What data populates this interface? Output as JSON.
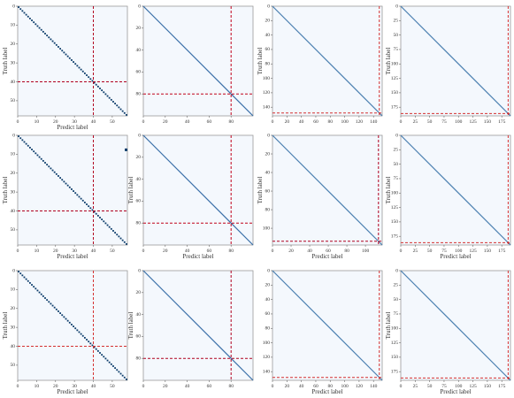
{
  "chart_data": [
    {
      "type": "heatmap",
      "xlabel": "Predict label",
      "ylabel": "Truth label",
      "n": 58,
      "xticks": [
        0,
        10,
        20,
        30,
        40,
        50
      ],
      "yticks": [
        0,
        10,
        20,
        30,
        40,
        50
      ],
      "yticklabels": [
        "0",
        "10",
        "20",
        "30",
        "40",
        "50"
      ],
      "diag_color": "#0d3d6b",
      "line_color": "#b0001e",
      "marker": 40,
      "dot_diag": true,
      "side_mark": false
    },
    {
      "type": "heatmap",
      "xlabel": "",
      "ylabel": "",
      "n": 100,
      "xticks": [
        0,
        20,
        40,
        60,
        80
      ],
      "yticks": [
        0,
        20,
        40,
        60,
        80
      ],
      "yticklabels": [
        "0",
        "20",
        "40",
        "60",
        "80"
      ],
      "diag_color": "#3a6fa8",
      "line_color": "#c0001a",
      "marker": 80,
      "dot_diag": false,
      "side_mark": false
    },
    {
      "type": "heatmap",
      "xlabel": "",
      "ylabel": "Truth label",
      "n": 152,
      "xticks": [
        0,
        20,
        40,
        60,
        80,
        100,
        120,
        140
      ],
      "yticks": [
        0,
        20,
        40,
        60,
        80,
        100,
        120,
        140
      ],
      "yticklabels": [
        "0",
        "20",
        "40",
        "60",
        "80",
        "100",
        "120",
        "140"
      ],
      "diag_color": "#4a7fb0",
      "line_color": "#d43030",
      "marker": 148,
      "dot_diag": false,
      "side_mark": false
    },
    {
      "type": "heatmap",
      "xlabel": "",
      "ylabel": "Truth label",
      "n": 190,
      "xticks": [
        0,
        25,
        50,
        75,
        100,
        125,
        150,
        175
      ],
      "yticks": [
        0,
        25,
        50,
        75,
        100,
        125,
        150,
        175
      ],
      "yticklabels": [
        "0",
        "25",
        "50",
        "75",
        "100",
        "125",
        "150",
        "175"
      ],
      "diag_color": "#4a7fb0",
      "line_color": "#d43030",
      "marker": 186,
      "dot_diag": false,
      "side_mark": false
    },
    {
      "type": "heatmap",
      "xlabel": "Predict label",
      "ylabel": "Truth label",
      "n": 58,
      "xticks": [
        0,
        10,
        20,
        30,
        40,
        50
      ],
      "yticks": [
        0,
        10,
        20,
        30,
        40,
        50
      ],
      "yticklabels": [
        "0",
        "10",
        "20",
        "30",
        "40",
        "50"
      ],
      "diag_color": "#0d3d6b",
      "line_color": "#b0001e",
      "marker": 40,
      "dot_diag": true,
      "side_mark": true
    },
    {
      "type": "heatmap",
      "xlabel": "Predict label",
      "ylabel": "Truth label",
      "n": 100,
      "xticks": [
        0,
        20,
        40,
        60,
        80
      ],
      "yticks": [
        0,
        20,
        40,
        60,
        80
      ],
      "yticklabels": [
        "0",
        "20",
        "40",
        "60",
        "80"
      ],
      "diag_color": "#3a6fa8",
      "line_color": "#c0001a",
      "marker": 80,
      "dot_diag": false,
      "side_mark": false
    },
    {
      "type": "heatmap",
      "xlabel": "Predict label",
      "ylabel": "Truth label",
      "n": 118,
      "xticks": [
        0,
        20,
        40,
        60,
        80,
        100
      ],
      "yticks": [
        0,
        20,
        40,
        60,
        80,
        100
      ],
      "yticklabels": [
        "0",
        "20",
        "40",
        "60",
        "80",
        "100"
      ],
      "diag_color": "#4a7fb0",
      "line_color": "#b0001e",
      "marker": 114,
      "dot_diag": false,
      "side_mark": false
    },
    {
      "type": "heatmap",
      "xlabel": "Predict label",
      "ylabel": "Truth label",
      "n": 190,
      "xticks": [
        0,
        25,
        50,
        75,
        100,
        125,
        150,
        175
      ],
      "yticks": [
        0,
        25,
        50,
        75,
        100,
        125,
        150,
        175
      ],
      "yticklabels": [
        "0",
        "25",
        "50",
        "75",
        "100",
        "125",
        "150",
        "175"
      ],
      "diag_color": "#4a7fb0",
      "line_color": "#d43030",
      "marker": 186,
      "dot_diag": false,
      "side_mark": false
    },
    {
      "type": "heatmap",
      "xlabel": "Predict label",
      "ylabel": "Truth label",
      "n": 58,
      "xticks": [
        0,
        10,
        20,
        30,
        40,
        50
      ],
      "yticks": [
        0,
        10,
        20,
        30,
        40,
        50
      ],
      "yticklabels": [
        "0",
        "10",
        "20",
        "30",
        "40",
        "50"
      ],
      "diag_color": "#0d3d6b",
      "line_color": "#d43030",
      "marker": 40,
      "dot_diag": true,
      "side_mark": false
    },
    {
      "type": "heatmap",
      "xlabel": "",
      "ylabel": "Truth label",
      "n": 100,
      "xticks": [
        0,
        20,
        40,
        60,
        80
      ],
      "yticks": [
        0,
        20,
        40,
        60,
        80
      ],
      "yticklabels": [
        "0",
        "20",
        "40",
        "60",
        "80"
      ],
      "diag_color": "#3a6fa8",
      "line_color": "#b0001e",
      "marker": 80,
      "dot_diag": false,
      "side_mark": false
    },
    {
      "type": "heatmap",
      "xlabel": "Predict label",
      "ylabel": "",
      "n": 152,
      "xticks": [
        0,
        20,
        40,
        60,
        80,
        100,
        120,
        140
      ],
      "yticks": [
        0,
        20,
        40,
        60,
        80,
        100,
        120,
        140
      ],
      "yticklabels": [
        "0",
        "20",
        "40",
        "60",
        "80",
        "100",
        "120",
        "140"
      ],
      "diag_color": "#4a7fb0",
      "line_color": "#d43030",
      "marker": 148,
      "dot_diag": false,
      "side_mark": false
    },
    {
      "type": "heatmap",
      "xlabel": "Predict label",
      "ylabel": "Truth label",
      "n": 190,
      "xticks": [
        0,
        25,
        50,
        75,
        100,
        125,
        150,
        175
      ],
      "yticks": [
        0,
        25,
        50,
        75,
        100,
        125,
        150,
        175
      ],
      "yticklabels": [
        "0",
        "25",
        "50",
        "75",
        "100",
        "125",
        "150",
        "175"
      ],
      "diag_color": "#4a7fb0",
      "line_color": "#d43030",
      "marker": 186,
      "dot_diag": false,
      "side_mark": false
    }
  ],
  "style": {
    "background": "#f4f8fd",
    "frame": "#9a9a9a"
  }
}
